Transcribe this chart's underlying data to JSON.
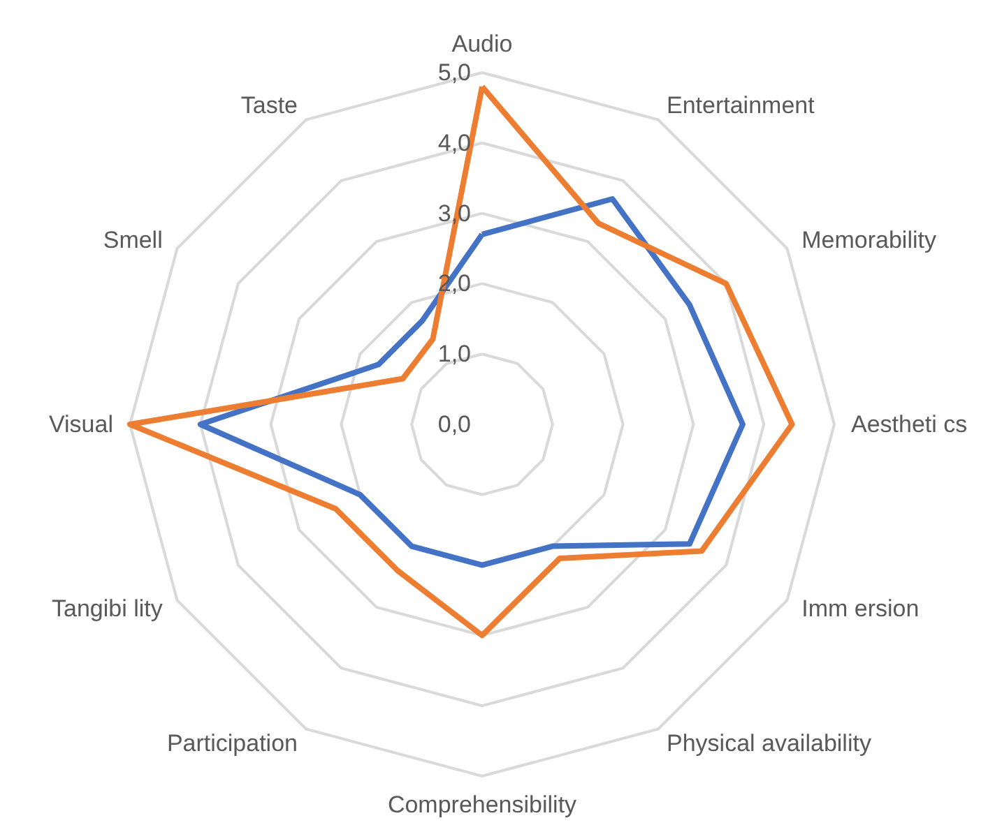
{
  "chart_data": {
    "type": "radar",
    "categories": [
      "Audio",
      "Entertainment",
      "Memorability",
      "Aestheti cs",
      "Imm ersion",
      "Physical availability",
      "Comprehensibility",
      "Participation",
      "Tangibi lity",
      "Visual",
      "Smell",
      "Taste"
    ],
    "series": [
      {
        "color": "#4472c4",
        "values": [
          2.7,
          3.7,
          3.4,
          3.7,
          3.4,
          2.0,
          2.0,
          2.0,
          2.0,
          4.0,
          1.7,
          1.7
        ]
      },
      {
        "color": "#ed7d31",
        "values": [
          4.8,
          3.3,
          4.0,
          4.4,
          3.6,
          2.2,
          3.0,
          2.4,
          2.4,
          5.0,
          1.3,
          1.4
        ]
      }
    ],
    "ylim": [
      0,
      5
    ],
    "yticks": [
      {
        "value": 0,
        "label": "0,0"
      },
      {
        "value": 1,
        "label": "1,0"
      },
      {
        "value": 2,
        "label": "2,0"
      },
      {
        "value": 3,
        "label": "3,0"
      },
      {
        "value": 4,
        "label": "4,0"
      },
      {
        "value": 5,
        "label": "5,0"
      }
    ]
  }
}
